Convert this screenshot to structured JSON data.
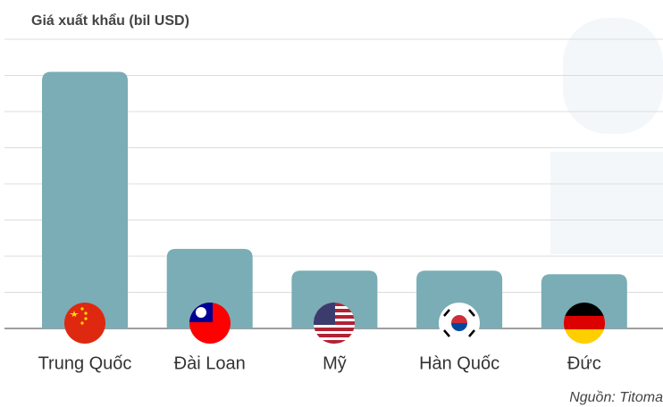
{
  "chart_data": {
    "type": "bar",
    "title": "Giá xuất khẩu (bil USD)",
    "categories": [
      "Trung Quốc",
      "Đài Loan",
      "Mỹ",
      "Hàn Quốc",
      "Đức"
    ],
    "values": [
      7.1,
      2.2,
      1.6,
      1.6,
      1.5
    ],
    "color": "#7aadb5",
    "ylim": [
      0,
      8
    ],
    "yticks": [
      0,
      1,
      2,
      3,
      4,
      5,
      6,
      7,
      8
    ],
    "grid": true,
    "source": "Nguồn: Titoma"
  }
}
